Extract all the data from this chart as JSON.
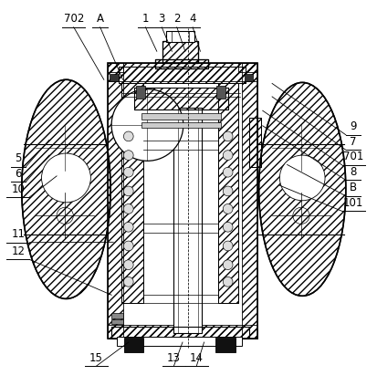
{
  "bg_color": "#ffffff",
  "lc": "#000000",
  "figsize": [
    4.14,
    4.23
  ],
  "dpi": 100,
  "labels_top": {
    "702": [
      0.195,
      0.945,
      0.275,
      0.8
    ],
    "A": [
      0.265,
      0.945,
      0.325,
      0.8
    ],
    "1": [
      0.385,
      0.945,
      0.415,
      0.875
    ],
    "3": [
      0.428,
      0.945,
      0.455,
      0.875
    ],
    "2": [
      0.468,
      0.945,
      0.49,
      0.875
    ],
    "4": [
      0.51,
      0.945,
      0.53,
      0.875
    ]
  },
  "labels_right": {
    "9": [
      0.935,
      0.66,
      0.72,
      0.79
    ],
    "7": [
      0.935,
      0.62,
      0.72,
      0.755
    ],
    "701": [
      0.935,
      0.58,
      0.695,
      0.718
    ],
    "8": [
      0.935,
      0.54,
      0.695,
      0.678
    ],
    "B": [
      0.935,
      0.498,
      0.76,
      0.575
    ],
    "101": [
      0.935,
      0.458,
      0.74,
      0.52
    ]
  },
  "labels_left": {
    "5": [
      0.048,
      0.575,
      0.13,
      0.64
    ],
    "6": [
      0.048,
      0.535,
      0.13,
      0.6
    ],
    "10": [
      0.048,
      0.495,
      0.15,
      0.545
    ],
    "11": [
      0.048,
      0.375,
      0.3,
      0.37
    ],
    "12": [
      0.048,
      0.33,
      0.295,
      0.23
    ]
  },
  "labels_bottom": {
    "15": [
      0.255,
      0.048,
      0.34,
      0.105
    ],
    "13": [
      0.46,
      0.048,
      0.483,
      0.105
    ],
    "14": [
      0.52,
      0.048,
      0.54,
      0.105
    ]
  }
}
